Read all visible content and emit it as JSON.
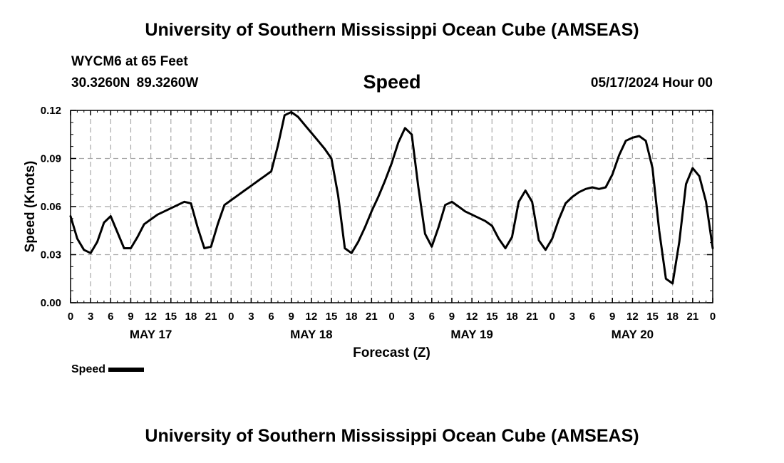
{
  "header": {
    "title": "University of Southern Mississippi Ocean Cube (AMSEAS)",
    "station": "WYCM6 at 65 Feet",
    "coordinates": "30.3260N  89.3260W",
    "chart_title": "Speed",
    "datetime": "05/17/2024 Hour 00"
  },
  "footer": {
    "title": "University of Southern Mississippi Ocean Cube (AMSEAS)"
  },
  "legend": {
    "label": "Speed",
    "color": "#000000"
  },
  "chart_data": {
    "type": "line",
    "title": "Speed",
    "xlabel": "Forecast (Z)",
    "ylabel": "Speed (Knots)",
    "ylim": [
      0,
      0.12
    ],
    "xlim": [
      0,
      96
    ],
    "y_ticks": [
      0,
      0.03,
      0.06,
      0.09,
      0.12
    ],
    "y_tick_labels": [
      "0.00",
      "0.03",
      "0.06",
      "0.09",
      "0.12"
    ],
    "x_ticks": [
      0,
      3,
      6,
      9,
      12,
      15,
      18,
      21,
      24,
      27,
      30,
      33,
      36,
      39,
      42,
      45,
      48,
      51,
      54,
      57,
      60,
      63,
      66,
      69,
      72,
      75,
      78,
      81,
      84,
      87,
      90,
      93,
      96
    ],
    "x_tick_labels": [
      "0",
      "3",
      "6",
      "9",
      "12",
      "15",
      "18",
      "21",
      "0",
      "3",
      "6",
      "9",
      "12",
      "15",
      "18",
      "21",
      "0",
      "3",
      "6",
      "9",
      "12",
      "15",
      "18",
      "21",
      "0",
      "3",
      "6",
      "9",
      "12",
      "15",
      "18",
      "21",
      "0"
    ],
    "day_labels": [
      {
        "text": "MAY 17",
        "x": 12
      },
      {
        "text": "MAY 18",
        "x": 36
      },
      {
        "text": "MAY 19",
        "x": 60
      },
      {
        "text": "MAY 20",
        "x": 84
      }
    ],
    "grid": true,
    "series": [
      {
        "name": "Speed",
        "color": "#000000",
        "x": [
          0,
          1,
          2,
          3,
          4,
          5,
          6,
          7,
          8,
          9,
          10,
          11,
          12,
          13,
          14,
          15,
          16,
          17,
          18,
          19,
          20,
          21,
          22,
          23,
          24,
          25,
          26,
          27,
          28,
          29,
          30,
          31,
          32,
          33,
          34,
          35,
          36,
          37,
          38,
          39,
          40,
          41,
          42,
          43,
          44,
          45,
          46,
          47,
          48,
          49,
          50,
          51,
          52,
          53,
          54,
          55,
          56,
          57,
          58,
          59,
          60,
          61,
          62,
          63,
          64,
          65,
          66,
          67,
          68,
          69,
          70,
          71,
          72,
          73,
          74,
          75,
          76,
          77,
          78,
          79,
          80,
          81,
          82,
          83,
          84,
          85,
          86,
          87,
          88,
          89,
          90,
          91,
          92,
          93,
          94,
          95,
          96
        ],
        "values": [
          0.054,
          0.04,
          0.033,
          0.031,
          0.038,
          0.05,
          0.054,
          0.044,
          0.034,
          0.034,
          0.041,
          0.049,
          0.052,
          0.055,
          0.057,
          0.059,
          0.061,
          0.063,
          0.062,
          0.047,
          0.034,
          0.035,
          0.049,
          0.061,
          0.064,
          0.067,
          0.07,
          0.073,
          0.076,
          0.079,
          0.082,
          0.098,
          0.117,
          0.119,
          0.116,
          0.111,
          0.106,
          0.101,
          0.096,
          0.09,
          0.067,
          0.034,
          0.031,
          0.038,
          0.047,
          0.057,
          0.066,
          0.076,
          0.087,
          0.1,
          0.109,
          0.105,
          0.072,
          0.043,
          0.035,
          0.047,
          0.061,
          0.063,
          0.06,
          0.057,
          0.055,
          0.053,
          0.051,
          0.048,
          0.04,
          0.034,
          0.041,
          0.063,
          0.07,
          0.063,
          0.039,
          0.033,
          0.04,
          0.052,
          0.062,
          0.066,
          0.069,
          0.071,
          0.072,
          0.071,
          0.072,
          0.08,
          0.092,
          0.101,
          0.103,
          0.104,
          0.101,
          0.084,
          0.045,
          0.015,
          0.012,
          0.038,
          0.074,
          0.084,
          0.079,
          0.063,
          0.034
        ]
      }
    ]
  }
}
